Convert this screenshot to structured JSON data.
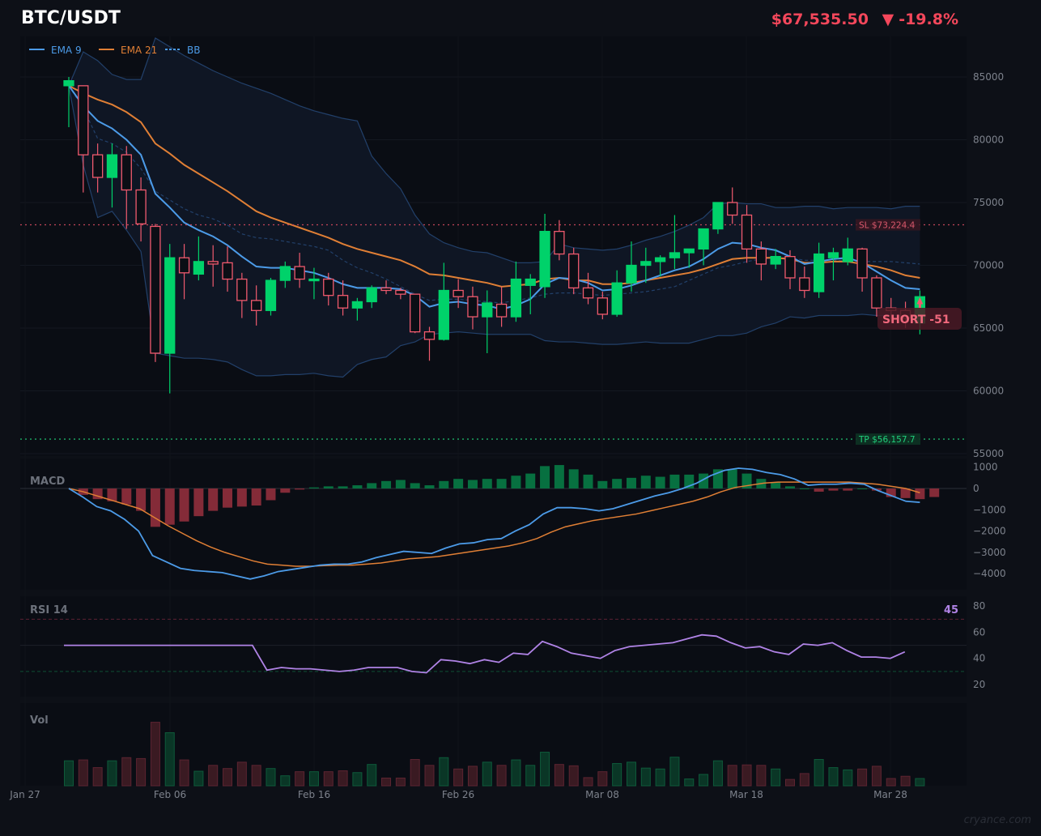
{
  "header": {
    "symbol": "BTC/USDT",
    "price": "$67,535.50",
    "change_arrow": "▼",
    "change_pct": "-19.8%",
    "down_color": "#f4475b"
  },
  "legend": [
    {
      "label": "EMA 9",
      "color": "#4c9be8",
      "style": "solid"
    },
    {
      "label": "EMA 21",
      "color": "#e07f35",
      "style": "solid"
    },
    {
      "label": "BB",
      "color": "#4c9be8",
      "style": "dashed"
    }
  ],
  "levels": {
    "sl_label": "SL $73,224.4",
    "sl_value": 73224.4,
    "tp_label": "TP $56,157.7",
    "tp_value": 56157.7
  },
  "signal": {
    "label": "SHORT  -51"
  },
  "panels": {
    "macd_label": "MACD",
    "rsi_label": "RSI 14",
    "rsi_current": "45",
    "vol_label": "Vol"
  },
  "watermark": "cryance.com",
  "chart_data": {
    "type": "candlestick",
    "title": "BTC/USDT",
    "price_axis": {
      "ticks": [
        85000,
        80000,
        75000,
        70000,
        65000,
        60000,
        55000
      ],
      "range": [
        55000,
        88000
      ]
    },
    "x_ticks": [
      "Jan 27",
      "Feb 06",
      "Feb 16",
      "Feb 26",
      "Mar 08",
      "Mar 18",
      "Mar 28"
    ],
    "candles": [
      [
        84300,
        85000,
        81000,
        84700
      ],
      [
        84300,
        84300,
        75800,
        78800
      ],
      [
        78800,
        79700,
        75800,
        77000
      ],
      [
        77000,
        79700,
        74600,
        78800
      ],
      [
        78800,
        79500,
        72900,
        76000
      ],
      [
        76000,
        77000,
        71900,
        73300
      ],
      [
        73100,
        73300,
        62300,
        63000
      ],
      [
        63000,
        71700,
        59800,
        70600
      ],
      [
        70600,
        71700,
        67300,
        69400
      ],
      [
        69300,
        72300,
        68800,
        70300
      ],
      [
        70300,
        71600,
        68300,
        70100
      ],
      [
        70200,
        71500,
        67900,
        68900
      ],
      [
        68900,
        69400,
        65800,
        67200
      ],
      [
        67200,
        68400,
        65200,
        66400
      ],
      [
        66400,
        69000,
        66000,
        68800
      ],
      [
        68800,
        70300,
        68200,
        69900
      ],
      [
        69900,
        71000,
        68200,
        68900
      ],
      [
        68900,
        69800,
        67300,
        68900
      ],
      [
        68900,
        69400,
        66800,
        67600
      ],
      [
        67600,
        68800,
        66000,
        66600
      ],
      [
        66600,
        67400,
        65600,
        67100
      ],
      [
        67100,
        68400,
        66600,
        68200
      ],
      [
        68200,
        68800,
        67700,
        68000
      ],
      [
        68000,
        68200,
        67300,
        67700
      ],
      [
        67700,
        67700,
        64600,
        64700
      ],
      [
        64700,
        65100,
        62400,
        64100
      ],
      [
        64100,
        70200,
        64000,
        68000
      ],
      [
        68000,
        68900,
        66600,
        67500
      ],
      [
        67500,
        68300,
        64900,
        65900
      ],
      [
        65900,
        68000,
        63000,
        67000
      ],
      [
        66900,
        68300,
        65100,
        65900
      ],
      [
        65900,
        70300,
        65500,
        68900
      ],
      [
        68400,
        69300,
        66100,
        68900
      ],
      [
        68300,
        74100,
        67400,
        72700
      ],
      [
        72700,
        73600,
        70400,
        70900
      ],
      [
        70900,
        71400,
        67700,
        68200
      ],
      [
        68200,
        69400,
        66900,
        67400
      ],
      [
        67400,
        67900,
        65700,
        66100
      ],
      [
        66100,
        69600,
        65900,
        68600
      ],
      [
        68600,
        71900,
        67900,
        70000
      ],
      [
        70000,
        71400,
        68600,
        70300
      ],
      [
        70300,
        70800,
        69100,
        70600
      ],
      [
        70600,
        74000,
        69700,
        71000
      ],
      [
        71000,
        71300,
        69800,
        71300
      ],
      [
        71300,
        72900,
        70000,
        72900
      ],
      [
        72900,
        75000,
        72500,
        75000
      ],
      [
        75000,
        76200,
        73300,
        74000
      ],
      [
        74000,
        74800,
        70200,
        71300
      ],
      [
        71300,
        71900,
        68800,
        70100
      ],
      [
        70100,
        71300,
        69700,
        70700
      ],
      [
        70700,
        71200,
        68100,
        69000
      ],
      [
        69000,
        69900,
        67400,
        68000
      ],
      [
        67900,
        71800,
        67400,
        70900
      ],
      [
        70600,
        71400,
        68800,
        71000
      ],
      [
        70300,
        72200,
        70000,
        71300
      ],
      [
        71300,
        71400,
        67900,
        69000
      ],
      [
        69000,
        69200,
        65900,
        66600
      ],
      [
        66600,
        67400,
        65500,
        66400
      ],
      [
        66400,
        67100,
        65000,
        65800
      ],
      [
        65400,
        68000,
        64500,
        67500
      ]
    ],
    "ema9": [
      84300,
      82700,
      81500,
      80900,
      80000,
      78800,
      75700,
      74600,
      73400,
      72800,
      72300,
      71600,
      70700,
      69900,
      69800,
      69800,
      69600,
      69400,
      69000,
      68500,
      68200,
      68200,
      68200,
      68100,
      67600,
      66700,
      67000,
      67100,
      66900,
      66800,
      66500,
      66800,
      67300,
      68500,
      69000,
      68900,
      68600,
      68000,
      68100,
      68400,
      68800,
      69200,
      69600,
      69900,
      70500,
      71300,
      71800,
      71700,
      71400,
      71200,
      70700,
      70100,
      70300,
      70500,
      70600,
      70200,
      69500,
      68800,
      68200,
      68100
    ],
    "ema21": [
      84300,
      83700,
      83200,
      82800,
      82200,
      81400,
      79700,
      78900,
      78000,
      77300,
      76600,
      75900,
      75100,
      74300,
      73800,
      73400,
      73000,
      72600,
      72200,
      71700,
      71300,
      71000,
      70700,
      70400,
      69900,
      69300,
      69200,
      69000,
      68800,
      68600,
      68300,
      68400,
      68500,
      68900,
      69000,
      68800,
      68800,
      68500,
      68500,
      68600,
      68800,
      69000,
      69200,
      69400,
      69700,
      70100,
      70500,
      70600,
      70600,
      70600,
      70500,
      70200,
      70200,
      70300,
      70300,
      70100,
      69900,
      69600,
      69200,
      69000
    ],
    "bb_upper": [
      84300,
      87000,
      86300,
      85200,
      84800,
      84800,
      88100,
      87400,
      86700,
      86100,
      85500,
      85000,
      84500,
      84100,
      83700,
      83200,
      82700,
      82300,
      82000,
      81700,
      81500,
      78700,
      77300,
      76100,
      74000,
      72500,
      71800,
      71400,
      71100,
      71000,
      70600,
      70200,
      70200,
      70300,
      71700,
      71400,
      71300,
      71200,
      71300,
      71600,
      72000,
      72300,
      72700,
      73200,
      73800,
      74900,
      75000,
      74900,
      74900,
      74600,
      74600,
      74700,
      74700,
      74500,
      74600,
      74600,
      74600,
      74500,
      74700,
      74700
    ],
    "bb_mid": [
      84300,
      82500,
      80100,
      79700,
      79000,
      77700,
      75900,
      75200,
      74500,
      74000,
      73700,
      73200,
      72500,
      72200,
      72100,
      71900,
      71700,
      71500,
      71200,
      70400,
      69800,
      69400,
      68900,
      68300,
      67700,
      67200,
      67300,
      67300,
      67200,
      67100,
      67000,
      67200,
      67400,
      67700,
      67800,
      67800,
      67700,
      67600,
      67700,
      67800,
      67900,
      68100,
      68300,
      68800,
      69300,
      69800,
      70000,
      70300,
      70500,
      70600,
      70600,
      70400,
      70400,
      70400,
      70400,
      70300,
      70300,
      70300,
      70200,
      70100
    ],
    "bb_lower": [
      84300,
      78000,
      73800,
      74300,
      72800,
      71100,
      63000,
      62800,
      62600,
      62600,
      62500,
      62300,
      61700,
      61200,
      61200,
      61300,
      61300,
      61400,
      61200,
      61100,
      62100,
      62500,
      62700,
      63600,
      63900,
      64500,
      64600,
      64700,
      64600,
      64500,
      64500,
      64500,
      64500,
      64000,
      63900,
      63900,
      63800,
      63700,
      63700,
      63800,
      63900,
      63800,
      63800,
      63800,
      64100,
      64400,
      64400,
      64600,
      65100,
      65400,
      65900,
      65800,
      66000,
      66000,
      66000,
      66100,
      66000,
      66000,
      66000,
      66000
    ],
    "macd": {
      "ticks": [
        1000,
        0,
        -1000,
        -2000,
        -3000,
        -4000
      ],
      "macd_line": [
        0,
        -400,
        -850,
        -1050,
        -1450,
        -2000,
        -3150,
        -3450,
        -3750,
        -3850,
        -3900,
        -3950,
        -4100,
        -4250,
        -4100,
        -3900,
        -3800,
        -3700,
        -3600,
        -3550,
        -3550,
        -3450,
        -3250,
        -3100,
        -2950,
        -3000,
        -3050,
        -2800,
        -2600,
        -2550,
        -2400,
        -2350,
        -2000,
        -1700,
        -1200,
        -900,
        -900,
        -950,
        -1050,
        -950,
        -750,
        -550,
        -350,
        -200,
        0,
        250,
        600,
        850,
        950,
        900,
        750,
        650,
        450,
        150,
        200,
        200,
        250,
        200,
        -100,
        -350,
        -600,
        -650
      ],
      "signal_line": [
        0,
        -150,
        -350,
        -550,
        -750,
        -950,
        -1350,
        -1750,
        -2100,
        -2450,
        -2750,
        -3000,
        -3200,
        -3400,
        -3550,
        -3600,
        -3650,
        -3650,
        -3620,
        -3600,
        -3600,
        -3550,
        -3500,
        -3400,
        -3300,
        -3250,
        -3200,
        -3100,
        -3000,
        -2900,
        -2800,
        -2700,
        -2550,
        -2350,
        -2050,
        -1800,
        -1650,
        -1500,
        -1400,
        -1300,
        -1200,
        -1050,
        -900,
        -750,
        -600,
        -400,
        -150,
        50,
        150,
        250,
        300,
        300,
        300,
        300,
        300,
        300,
        250,
        200,
        100,
        0,
        -200
      ],
      "histogram": [
        -300,
        -500,
        -600,
        -750,
        -1050,
        -1800,
        -1700,
        -1550,
        -1300,
        -1050,
        -900,
        -850,
        -800,
        -550,
        -200,
        -50,
        50,
        100,
        100,
        150,
        250,
        350,
        400,
        250,
        150,
        350,
        450,
        400,
        450,
        450,
        600,
        700,
        1050,
        1100,
        900,
        650,
        350,
        450,
        500,
        600,
        550,
        650,
        650,
        700,
        900,
        900,
        700,
        450,
        300,
        100,
        0,
        -150,
        -100,
        -100,
        0,
        -100,
        -400,
        -450,
        -500,
        -400
      ]
    },
    "rsi": {
      "ticks": [
        80,
        60,
        40,
        20
      ],
      "overbought": 70,
      "oversold": 30,
      "values": [
        50,
        50,
        50,
        50,
        50,
        50,
        50,
        50,
        50,
        50,
        50,
        50,
        50,
        50,
        31,
        33,
        32,
        32,
        31,
        30,
        31,
        33,
        33,
        33,
        30,
        29,
        39,
        38,
        36,
        39,
        37,
        44,
        43,
        53,
        49,
        44,
        42,
        40,
        46,
        49,
        50,
        51,
        52,
        55,
        58,
        57,
        52,
        48,
        49,
        45,
        43,
        51,
        50,
        52,
        46,
        41,
        41,
        40,
        45
      ],
      "current": 45
    },
    "volume": [
      55,
      57,
      40,
      55,
      62,
      60,
      140,
      117,
      57,
      32,
      45,
      38,
      52,
      45,
      38,
      22,
      31,
      31,
      31,
      33,
      29,
      47,
      17,
      17,
      58,
      45,
      62,
      37,
      43,
      52,
      45,
      57,
      45,
      74,
      47,
      44,
      18,
      31,
      49,
      52,
      39,
      37,
      63,
      15,
      25,
      55,
      45,
      46,
      45,
      37,
      14,
      27,
      58,
      40,
      35,
      37,
      43,
      16,
      21,
      16
    ]
  }
}
